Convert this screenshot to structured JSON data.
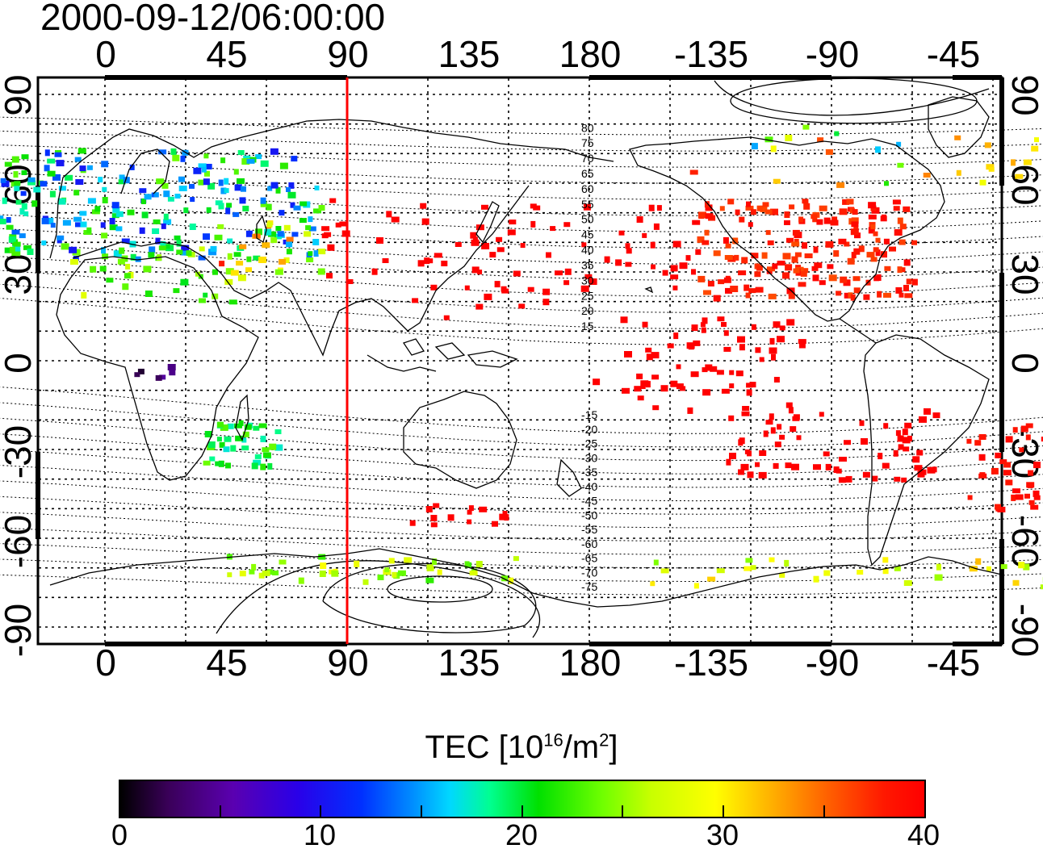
{
  "timestamp": "2000-09-12/06:00:00",
  "x_ticks": [
    "0",
    "45",
    "90",
    "135",
    "180",
    "-135",
    "-90",
    "-45"
  ],
  "y_ticks": [
    "90",
    "60",
    "30",
    "0",
    "-30",
    "-60",
    "-90"
  ],
  "colorbar": {
    "title_main": "TEC  [10",
    "title_sup1": "16",
    "title_mid": "/m",
    "title_sup2": "2",
    "title_end": "]",
    "ticks": [
      "0",
      "10",
      "20",
      "30",
      "40"
    ],
    "range": [
      0,
      40
    ]
  },
  "magnetic_latitude_labels": [
    "80",
    "75",
    "70",
    "65",
    "60",
    "55",
    "50",
    "45",
    "40",
    "35",
    "30",
    "25",
    "20",
    "15",
    "-15",
    "-20",
    "-25",
    "-30",
    "-35",
    "-40",
    "-45",
    "-50",
    "-55",
    "-60",
    "-65",
    "-70",
    "-75"
  ],
  "marker_longitude": 90,
  "colors": {
    "marker_line": "#ff0000",
    "grid": "#000000",
    "coast": "#000000"
  },
  "map": {
    "projection": "equirectangular",
    "lon_range": [
      -25,
      335
    ],
    "lat_range": [
      -90,
      90
    ]
  }
}
